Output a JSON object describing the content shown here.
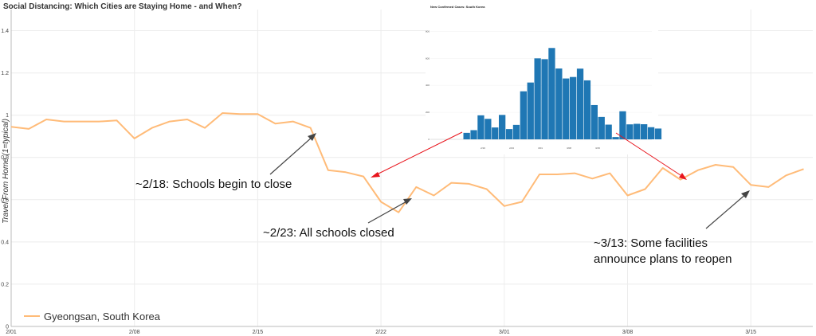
{
  "chart_data": [
    {
      "type": "line",
      "title": "Social Distancing: Which Cities are Staying Home - and When?",
      "ylabel": "Travel From Home (1=typical)",
      "xlabel": "",
      "ylim": [
        0,
        1.5
      ],
      "yticks": [
        "0",
        "0.2",
        "0.4",
        "0.6",
        "0.8",
        "1",
        "1.2",
        "1.4"
      ],
      "xticks": [
        "2/01",
        "2/08",
        "2/15",
        "2/22",
        "3/01",
        "3/08",
        "3/15"
      ],
      "grid": true,
      "legend_position": "bottom-left",
      "series": [
        {
          "name": "Gyeongsan, South Korea",
          "color": "#ffbb78",
          "values": [
            0.945,
            0.935,
            0.98,
            0.97,
            0.97,
            0.97,
            0.975,
            0.89,
            0.94,
            0.97,
            0.98,
            0.94,
            1.01,
            1.005,
            1.005,
            0.96,
            0.97,
            0.94,
            0.74,
            0.73,
            0.71,
            0.59,
            0.54,
            0.66,
            0.62,
            0.68,
            0.675,
            0.65,
            0.57,
            0.59,
            0.72,
            0.72,
            0.725,
            0.7,
            0.725,
            0.62,
            0.65,
            0.75,
            0.695,
            0.74,
            0.765,
            0.755,
            0.67,
            0.66,
            0.715,
            0.745
          ]
        }
      ]
    },
    {
      "type": "bar",
      "title": "New Confirmed Cases: South Korea",
      "values": [
        48,
        68,
        178,
        152,
        88,
        181,
        76,
        107,
        356,
        421,
        600,
        594,
        677,
        525,
        451,
        462,
        524,
        437,
        254,
        166,
        109,
        17,
        208,
        111,
        115,
        112,
        90,
        80
      ],
      "ylim": [
        0,
        950
      ],
      "yticks": [
        "0",
        "200",
        "400",
        "600",
        "800"
      ],
      "xticks": [
        "2/16",
        "2/23",
        "3/01",
        "3/08",
        "3/15"
      ],
      "color": "#1f77b4"
    }
  ],
  "annotations": {
    "schools_begin": "~2/18: Schools begin to close",
    "all_closed": "~2/23: All schools closed",
    "reopen_line1": "~3/13: Some facilities",
    "reopen_line2": "announce plans to reopen"
  }
}
